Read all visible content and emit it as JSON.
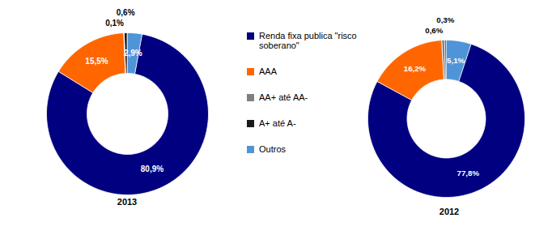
{
  "chart_data": [
    {
      "type": "donut",
      "title": "2013",
      "categories": [
        "Renda fixa publica \"risco soberano\"",
        "AAA",
        "AA+ até AA-",
        "A+ até A-",
        "Outros"
      ],
      "values": [
        80.9,
        15.5,
        0.1,
        0.6,
        2.9
      ],
      "value_labels": [
        "80,9%",
        "15,5%",
        "0,1%",
        "0,6%",
        "2,9%"
      ],
      "colors": [
        "#000080",
        "#ff6600",
        "#808080",
        "#1a1a1a",
        "#4f94d8"
      ],
      "data_labels": true,
      "legend": "right"
    },
    {
      "type": "donut",
      "title": "2012",
      "categories": [
        "Renda fixa publica \"risco soberano\"",
        "AAA",
        "AA+ até AA-",
        "A+ até A-",
        "Outros"
      ],
      "values": [
        77.8,
        16.2,
        0.6,
        0.3,
        5.1
      ],
      "value_labels": [
        "77,8%",
        "16,2%",
        "0,6%",
        "0,3%",
        "5,1%"
      ],
      "colors": [
        "#000080",
        "#ff6600",
        "#808080",
        "#1a1a1a",
        "#4f94d8"
      ],
      "data_labels": true
    }
  ]
}
